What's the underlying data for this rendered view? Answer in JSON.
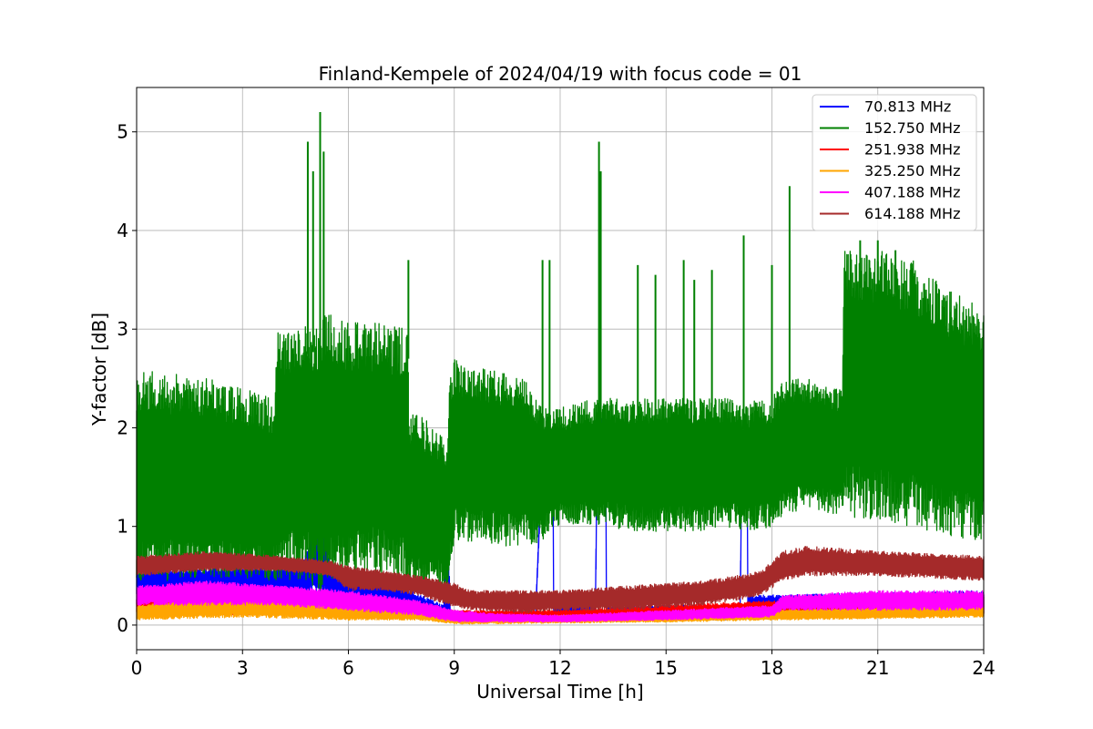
{
  "chart_data": {
    "type": "line",
    "title": "Finland-Kempele of 2024/04/19 with focus code = 01",
    "xlabel": "Universal Time [h]",
    "ylabel": "Y-factor [dB]",
    "xlim": [
      0,
      24
    ],
    "ylim": [
      -0.25,
      5.45
    ],
    "xticks": [
      0,
      3,
      6,
      9,
      12,
      15,
      18,
      21,
      24
    ],
    "yticks": [
      0,
      1,
      2,
      3,
      4,
      5
    ],
    "grid": true,
    "legend_position": "top-right",
    "series": [
      {
        "name": " 70.813 MHz",
        "color": "#0000ff",
        "band": [
          [
            0,
            0.55,
            0.3
          ],
          [
            3,
            0.6,
            0.25
          ],
          [
            4.7,
            0.6,
            0.25
          ],
          [
            4.9,
            0.9,
            0.3
          ],
          [
            5.1,
            1.05,
            0.3
          ],
          [
            5.3,
            0.9,
            0.3
          ],
          [
            5.6,
            0.55,
            0.2
          ],
          [
            6,
            0.5,
            0.15
          ],
          [
            7.5,
            0.4,
            0.1
          ],
          [
            8.7,
            0.2,
            0.05
          ],
          [
            8.8,
            1.2,
            0.05
          ],
          [
            8.9,
            0.1,
            0.02
          ],
          [
            9,
            0.1,
            0.05
          ],
          [
            11.3,
            0.1,
            0.05
          ],
          [
            11.5,
            1.9,
            1.65
          ],
          [
            11.8,
            1.85,
            1.65
          ],
          [
            11.81,
            0.2,
            0.05
          ],
          [
            13,
            0.2,
            0.05
          ],
          [
            13.05,
            2.1,
            1.7
          ],
          [
            13.3,
            2.1,
            1.7
          ],
          [
            13.31,
            0.2,
            0.05
          ],
          [
            17.1,
            0.2,
            0.05
          ],
          [
            17.15,
            1.9,
            1.6
          ],
          [
            17.3,
            1.9,
            1.6
          ],
          [
            17.31,
            0.3,
            0.1
          ],
          [
            24,
            0.35,
            0.1
          ]
        ]
      },
      {
        "name": "152.750 MHz",
        "color": "#008000",
        "band": [
          [
            0,
            2.6,
            0.45
          ],
          [
            1,
            2.55,
            0.45
          ],
          [
            2,
            2.5,
            0.5
          ],
          [
            3,
            2.4,
            0.45
          ],
          [
            3.9,
            2.3,
            0.45
          ],
          [
            4.0,
            3.0,
            0.45
          ],
          [
            4.8,
            3.05,
            0.45
          ],
          [
            5.2,
            3.1,
            0.35
          ],
          [
            5.5,
            3.2,
            0.4
          ],
          [
            6,
            3.1,
            0.45
          ],
          [
            6.5,
            3.1,
            0.5
          ],
          [
            7.0,
            3.05,
            0.45
          ],
          [
            7.7,
            3.0,
            0.35
          ],
          [
            7.71,
            2.2,
            0.35
          ],
          [
            8.5,
            2.0,
            0.35
          ],
          [
            8.8,
            1.85,
            0.3
          ],
          [
            8.85,
            2.6,
            0.5
          ],
          [
            9.0,
            2.7,
            0.85
          ],
          [
            9.5,
            2.6,
            0.85
          ],
          [
            10,
            2.6,
            0.8
          ],
          [
            11,
            2.5,
            0.8
          ],
          [
            11.5,
            2.2,
            0.85
          ],
          [
            11.8,
            2.2,
            0.95
          ],
          [
            12,
            2.2,
            1.0
          ],
          [
            13,
            2.3,
            1.0
          ],
          [
            13.3,
            2.3,
            1.0
          ],
          [
            14,
            2.3,
            0.95
          ],
          [
            15,
            2.3,
            0.95
          ],
          [
            16,
            2.3,
            0.95
          ],
          [
            17,
            2.3,
            1.0
          ],
          [
            17.2,
            2.2,
            0.95
          ],
          [
            17.5,
            2.3,
            0.95
          ],
          [
            18,
            2.3,
            1.0
          ],
          [
            18.3,
            2.5,
            1.1
          ],
          [
            19,
            2.5,
            1.2
          ],
          [
            20,
            2.4,
            1.1
          ],
          [
            20.05,
            3.8,
            1.1
          ],
          [
            21,
            3.8,
            1.05
          ],
          [
            22,
            3.7,
            1.0
          ],
          [
            23,
            3.4,
            0.9
          ],
          [
            24,
            3.2,
            0.85
          ]
        ],
        "spikes": [
          [
            4.85,
            4.9
          ],
          [
            5.0,
            4.6
          ],
          [
            5.2,
            5.2
          ],
          [
            5.3,
            4.8
          ],
          [
            7.7,
            3.7
          ],
          [
            11.5,
            3.7
          ],
          [
            11.7,
            3.7
          ],
          [
            13.1,
            4.9
          ],
          [
            13.15,
            4.6
          ],
          [
            14.2,
            3.65
          ],
          [
            14.7,
            3.55
          ],
          [
            15.5,
            3.7
          ],
          [
            15.8,
            3.5
          ],
          [
            16.3,
            3.6
          ],
          [
            17.2,
            3.95
          ],
          [
            18.5,
            4.45
          ],
          [
            18.0,
            3.65
          ],
          [
            20.5,
            3.9
          ],
          [
            21.0,
            3.9
          ],
          [
            21.5,
            3.8
          ]
        ]
      },
      {
        "name": "251.938 MHz",
        "color": "#ff0000",
        "band": [
          [
            0,
            0.3,
            0.1
          ],
          [
            6,
            0.25,
            0.1
          ],
          [
            9,
            0.15,
            0.05
          ],
          [
            12,
            0.15,
            0.05
          ],
          [
            15,
            0.2,
            0.05
          ],
          [
            18,
            0.25,
            0.1
          ],
          [
            24,
            0.3,
            0.1
          ]
        ]
      },
      {
        "name": "325.250 MHz",
        "color": "#ffa500",
        "band": [
          [
            0,
            0.2,
            0.05
          ],
          [
            3,
            0.3,
            0.08
          ],
          [
            6,
            0.2,
            0.05
          ],
          [
            8,
            0.15,
            0.05
          ],
          [
            9,
            0.1,
            0.01
          ],
          [
            12,
            0.1,
            0.02
          ],
          [
            15,
            0.12,
            0.03
          ],
          [
            18,
            0.15,
            0.05
          ],
          [
            24,
            0.2,
            0.08
          ]
        ]
      },
      {
        "name": "407.188 MHz",
        "color": "#ff00ff",
        "band": [
          [
            0,
            0.4,
            0.2
          ],
          [
            2,
            0.45,
            0.2
          ],
          [
            4,
            0.4,
            0.2
          ],
          [
            6,
            0.35,
            0.15
          ],
          [
            7,
            0.3,
            0.12
          ],
          [
            8,
            0.25,
            0.1
          ],
          [
            9,
            0.15,
            0.03
          ],
          [
            10,
            0.12,
            0.03
          ],
          [
            12,
            0.1,
            0.03
          ],
          [
            15,
            0.15,
            0.05
          ],
          [
            18,
            0.2,
            0.08
          ],
          [
            18.3,
            0.3,
            0.15
          ],
          [
            21,
            0.35,
            0.15
          ],
          [
            24,
            0.35,
            0.15
          ]
        ]
      },
      {
        "name": "614.188 MHz",
        "color": "#a52a2a",
        "band": [
          [
            0,
            0.7,
            0.5
          ],
          [
            2,
            0.75,
            0.55
          ],
          [
            4,
            0.7,
            0.55
          ],
          [
            5.5,
            0.65,
            0.5
          ],
          [
            6,
            0.6,
            0.35
          ],
          [
            7,
            0.55,
            0.35
          ],
          [
            8,
            0.5,
            0.3
          ],
          [
            8.8,
            0.45,
            0.2
          ],
          [
            9.5,
            0.35,
            0.15
          ],
          [
            11,
            0.35,
            0.12
          ],
          [
            12,
            0.35,
            0.15
          ],
          [
            14,
            0.4,
            0.15
          ],
          [
            16,
            0.45,
            0.2
          ],
          [
            17,
            0.5,
            0.25
          ],
          [
            17.7,
            0.55,
            0.3
          ],
          [
            18.3,
            0.75,
            0.45
          ],
          [
            19,
            0.8,
            0.5
          ],
          [
            21,
            0.75,
            0.5
          ],
          [
            24,
            0.7,
            0.45
          ]
        ]
      }
    ]
  }
}
